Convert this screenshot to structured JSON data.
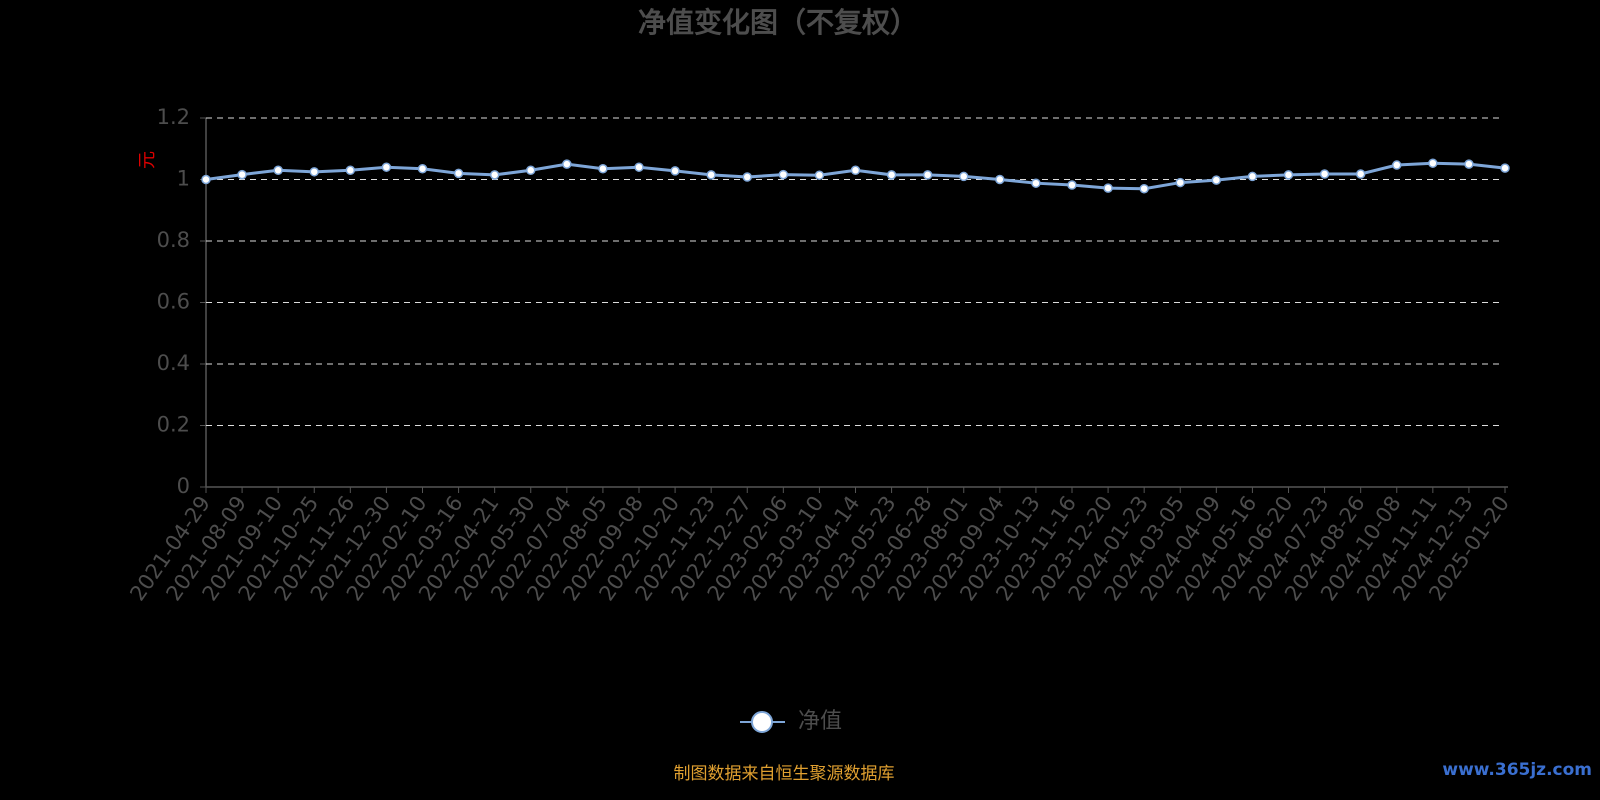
{
  "chart_data": {
    "type": "line",
    "title": "净值变化图（不复权）",
    "y_label": "元",
    "categories": [
      "2021-04-29",
      "2021-08-09",
      "2021-09-10",
      "2021-10-25",
      "2021-11-26",
      "2021-12-30",
      "2022-02-10",
      "2022-03-16",
      "2022-04-21",
      "2022-05-30",
      "2022-07-04",
      "2022-08-05",
      "2022-09-08",
      "2022-10-20",
      "2022-11-23",
      "2022-12-27",
      "2023-02-06",
      "2023-03-10",
      "2023-04-14",
      "2023-05-23",
      "2023-06-28",
      "2023-08-01",
      "2023-09-04",
      "2023-10-13",
      "2023-11-16",
      "2023-12-20",
      "2024-01-23",
      "2024-03-05",
      "2024-04-09",
      "2024-05-16",
      "2024-06-20",
      "2024-07-23",
      "2024-08-26",
      "2024-10-08",
      "2024-11-11",
      "2024-12-13",
      "2025-01-20"
    ],
    "series": [
      {
        "name": "净值",
        "color": "#7ea6d8",
        "values": [
          1.0,
          1.016,
          1.03,
          1.025,
          1.03,
          1.04,
          1.035,
          1.02,
          1.015,
          1.03,
          1.05,
          1.035,
          1.04,
          1.028,
          1.015,
          1.008,
          1.016,
          1.014,
          1.03,
          1.015,
          1.015,
          1.01,
          1.0,
          0.988,
          0.982,
          0.972,
          0.97,
          0.99,
          0.998,
          1.01,
          1.015,
          1.018,
          1.018,
          1.047,
          1.053,
          1.05,
          1.037
        ]
      }
    ],
    "ylim": [
      0,
      1.2
    ],
    "yticks": [
      0,
      0.2,
      0.4,
      0.6,
      0.8,
      1,
      1.2
    ],
    "grid": true,
    "source": "制图数据来自恒生聚源数据库",
    "watermark": "www.365jz.com"
  }
}
